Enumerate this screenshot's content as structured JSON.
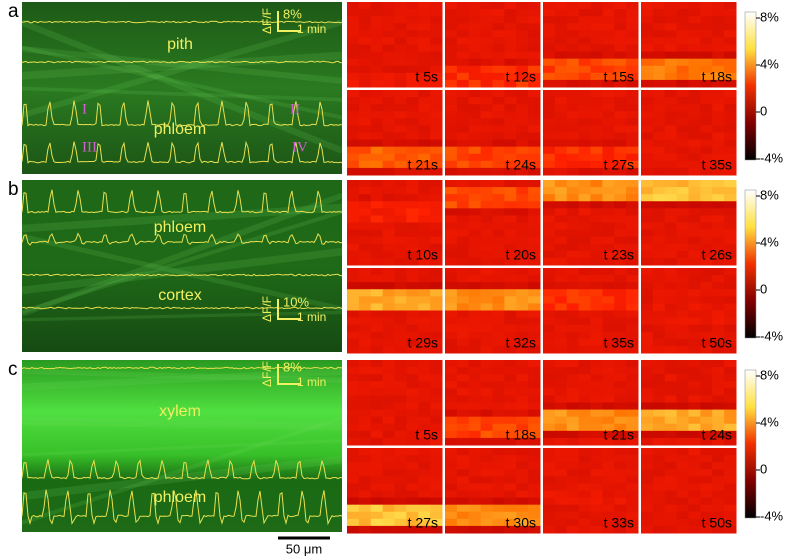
{
  "panels": [
    {
      "label": "a",
      "tissues": [
        "pith",
        "phloem"
      ],
      "markers": [
        "I",
        "II",
        "III",
        "IV"
      ],
      "scale": {
        "y": "ΔF/F",
        "amp": "8%",
        "time": "1 min"
      },
      "frames": [
        "t 5s",
        "t 12s",
        "t 15s",
        "t 18s",
        "t 21s",
        "t 24s",
        "t 27s",
        "t 35s"
      ],
      "colorbar": [
        "8%",
        "4%",
        "0",
        "-4%"
      ]
    },
    {
      "label": "b",
      "tissues": [
        "phloem",
        "cortex"
      ],
      "scale": {
        "y": "ΔF/F",
        "amp": "10%",
        "time": "1 min"
      },
      "frames": [
        "t 10s",
        "t 20s",
        "t 23s",
        "t 26s",
        "t 29s",
        "t 32s",
        "t 35s",
        "t 50s"
      ],
      "colorbar": [
        "8%",
        "4%",
        "0",
        "-4%"
      ]
    },
    {
      "label": "c",
      "tissues": [
        "xylem",
        "phloem"
      ],
      "scale": {
        "y": "ΔF/F",
        "amp": "8%",
        "time": "1 min"
      },
      "frames": [
        "t 5s",
        "t 18s",
        "t 21s",
        "t 24s",
        "t 27s",
        "t 30s",
        "t 33s",
        "t 50s"
      ],
      "colorbar": [
        "8%",
        "4%",
        "0",
        "-4%"
      ]
    }
  ],
  "scale_bar": "50 μm"
}
